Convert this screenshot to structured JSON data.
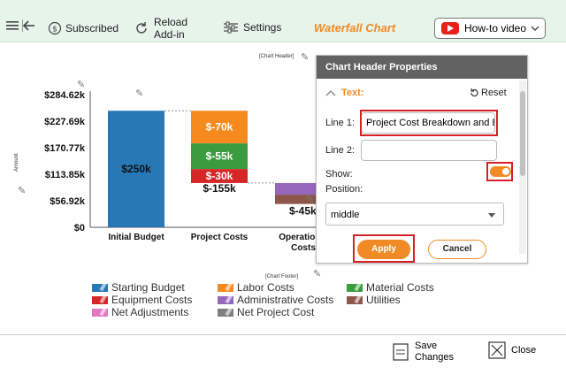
{
  "toolbar": {
    "subscribed": "Subscribed",
    "reload_line1": "Reload",
    "reload_line2": "Add-in",
    "settings": "Settings",
    "chart_title": "Waterfall Chart",
    "howto": "How-to video"
  },
  "chart": {
    "header_placeholder": "[Chart Header]",
    "footer_placeholder": "[Chart Footer]",
    "yaxis_label": "Amount"
  },
  "chart_data": {
    "type": "bar",
    "subtype": "waterfall",
    "categories": [
      "Initial Budget",
      "Project Costs",
      "Operational Costs"
    ],
    "ylim": [
      0,
      284620
    ],
    "yticks": [
      "$0",
      "$56.92k",
      "$113.85k",
      "$170.77k",
      "$227.69k",
      "$284.62k"
    ],
    "ylabel": "Amount",
    "segments": [
      {
        "category": "Initial Budget",
        "series": "Starting Budget",
        "value": 250000,
        "label": "$250k"
      },
      {
        "category": "Project Costs",
        "series": "Labor Costs",
        "value": -70000,
        "label": "$-70k"
      },
      {
        "category": "Project Costs",
        "series": "Material Costs",
        "value": -55000,
        "label": "$-55k"
      },
      {
        "category": "Project Costs",
        "series": "Equipment Costs",
        "value": -30000,
        "label": "$-30k"
      },
      {
        "category": "Project Costs",
        "series": "Net Project Cost",
        "value": -155000,
        "label": "$-155k"
      },
      {
        "category": "Operational Costs",
        "series": "Administrative Costs",
        "value": -25000,
        "label": ""
      },
      {
        "category": "Operational Costs",
        "series": "Utilities",
        "value": -20000,
        "label": "$-45k"
      }
    ],
    "legend": [
      {
        "name": "Starting Budget",
        "color": "#2878b5"
      },
      {
        "name": "Labor Costs",
        "color": "#f68a1e"
      },
      {
        "name": "Material Costs",
        "color": "#3a9b3f"
      },
      {
        "name": "Equipment Costs",
        "color": "#d62728"
      },
      {
        "name": "Administrative Costs",
        "color": "#9467bd"
      },
      {
        "name": "Utilities",
        "color": "#8c564b"
      },
      {
        "name": "Net Adjustments",
        "color": "#e377c2"
      },
      {
        "name": "Net Project Cost",
        "color": "#7f7f7f"
      }
    ],
    "legend_position": "bottom"
  },
  "panel": {
    "title": "Chart Header Properties",
    "section": "Text:",
    "reset": "Reset",
    "line1_label": "Line 1:",
    "line1_value": "Project Cost Breakdown and B",
    "line2_label": "Line 2:",
    "line2_value": "",
    "show_label": "Show:",
    "show": true,
    "position_label": "Position:",
    "position_value": "middle",
    "apply": "Apply",
    "cancel": "Cancel"
  },
  "footer": {
    "save_line1": "Save",
    "save_line2": "Changes",
    "close": "Close"
  },
  "colors": {
    "accent": "#f08a24",
    "toolbar_bg": "#e6f4ea",
    "highlight": "#d62027"
  }
}
